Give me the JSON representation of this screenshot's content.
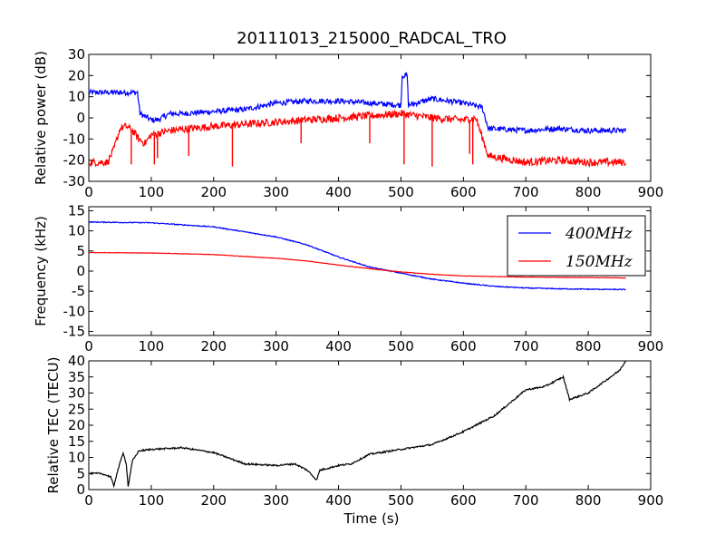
{
  "chart_data": {
    "title": "20111013_215000_RADCAL_TRO",
    "xlabel": "Time (s)",
    "colors": {
      "s400": "#0000ff",
      "s150": "#ff0000",
      "tec": "#000000"
    },
    "panels": [
      {
        "type": "line",
        "ylabel": "Relative power (dB)",
        "xlim": [
          0,
          900
        ],
        "ylim": [
          -30,
          30
        ],
        "xticks": [
          0,
          100,
          200,
          300,
          400,
          500,
          600,
          700,
          800,
          900
        ],
        "yticks": [
          -30,
          -20,
          -10,
          0,
          10,
          20,
          30
        ],
        "series": [
          {
            "color": "#0000ff",
            "noise": 1.3,
            "points": [
              [
                0,
                12
              ],
              [
                40,
                12
              ],
              [
                78,
                12
              ],
              [
                82,
                2
              ],
              [
                100,
                -1
              ],
              [
                110,
                -1
              ],
              [
                130,
                2
              ],
              [
                150,
                2
              ],
              [
                200,
                3
              ],
              [
                250,
                4
              ],
              [
                300,
                7
              ],
              [
                350,
                8
              ],
              [
                400,
                8
              ],
              [
                450,
                7
              ],
              [
                500,
                6
              ],
              [
                502,
                20
              ],
              [
                510,
                20
              ],
              [
                512,
                6
              ],
              [
                550,
                9
              ],
              [
                600,
                7
              ],
              [
                630,
                5
              ],
              [
                640,
                -5
              ],
              [
                700,
                -6
              ],
              [
                750,
                -5
              ],
              [
                800,
                -6
              ],
              [
                860,
                -6
              ]
            ]
          },
          {
            "color": "#ff0000",
            "noise": 1.8,
            "points": [
              [
                0,
                -21
              ],
              [
                30,
                -21
              ],
              [
                40,
                -15
              ],
              [
                50,
                -5
              ],
              [
                60,
                -4
              ],
              [
                70,
                -6
              ],
              [
                80,
                -10
              ],
              [
                90,
                -12
              ],
              [
                100,
                -8
              ],
              [
                130,
                -6
              ],
              [
                200,
                -4
              ],
              [
                250,
                -3
              ],
              [
                300,
                -2
              ],
              [
                350,
                -1
              ],
              [
                400,
                0
              ],
              [
                450,
                1
              ],
              [
                500,
                2
              ],
              [
                550,
                0
              ],
              [
                600,
                -1
              ],
              [
                620,
                0
              ],
              [
                640,
                -18
              ],
              [
                700,
                -21
              ],
              [
                750,
                -20
              ],
              [
                800,
                -21
              ],
              [
                860,
                -21
              ]
            ],
            "spikes": [
              [
                68,
                -22
              ],
              [
                105,
                -22
              ],
              [
                110,
                -19
              ],
              [
                160,
                -18
              ],
              [
                230,
                -23
              ],
              [
                340,
                -12
              ],
              [
                450,
                -12
              ],
              [
                505,
                -22
              ],
              [
                550,
                -23
              ],
              [
                610,
                -17
              ],
              [
                615,
                -22
              ]
            ]
          }
        ]
      },
      {
        "type": "line",
        "ylabel": "Frequency (kHz)",
        "xlim": [
          0,
          900
        ],
        "ylim": [
          -16,
          16
        ],
        "xticks": [
          0,
          100,
          200,
          300,
          400,
          500,
          600,
          700,
          800,
          900
        ],
        "yticks": [
          -15,
          -10,
          -5,
          0,
          5,
          10,
          15
        ],
        "legend": "top-right",
        "series": [
          {
            "name": "400MHz",
            "color": "#0000ff",
            "noise": 0.12,
            "points": [
              [
                0,
                12.2
              ],
              [
                100,
                12
              ],
              [
                200,
                11
              ],
              [
                300,
                8.5
              ],
              [
                350,
                6.5
              ],
              [
                400,
                3.5
              ],
              [
                450,
                1
              ],
              [
                500,
                -0.5
              ],
              [
                550,
                -2
              ],
              [
                600,
                -3
              ],
              [
                650,
                -3.8
              ],
              [
                700,
                -4.2
              ],
              [
                750,
                -4.4
              ],
              [
                800,
                -4.5
              ],
              [
                860,
                -4.6
              ]
            ]
          },
          {
            "name": "150MHz",
            "color": "#ff0000",
            "noise": 0.05,
            "points": [
              [
                0,
                4.6
              ],
              [
                100,
                4.5
              ],
              [
                200,
                4.1
              ],
              [
                300,
                3.2
              ],
              [
                350,
                2.5
              ],
              [
                400,
                1.5
              ],
              [
                450,
                0.6
              ],
              [
                500,
                -0.2
              ],
              [
                550,
                -0.8
              ],
              [
                600,
                -1.2
              ],
              [
                700,
                -1.5
              ],
              [
                800,
                -1.6
              ],
              [
                860,
                -1.7
              ]
            ]
          }
        ]
      },
      {
        "type": "line",
        "ylabel": "Relative TEC (TECU)",
        "xlim": [
          0,
          900
        ],
        "ylim": [
          0,
          40
        ],
        "xticks": [
          0,
          100,
          200,
          300,
          400,
          500,
          600,
          700,
          800,
          900
        ],
        "yticks": [
          0,
          5,
          10,
          15,
          20,
          25,
          30,
          35,
          40
        ],
        "series": [
          {
            "color": "#000000",
            "noise": 0.25,
            "points": [
              [
                0,
                5
              ],
              [
                20,
                5
              ],
              [
                35,
                4
              ],
              [
                40,
                1
              ],
              [
                45,
                5
              ],
              [
                55,
                11.5
              ],
              [
                60,
                8
              ],
              [
                63,
                1
              ],
              [
                70,
                9
              ],
              [
                80,
                12
              ],
              [
                100,
                12.5
              ],
              [
                150,
                13
              ],
              [
                200,
                11.5
              ],
              [
                250,
                8
              ],
              [
                300,
                7.5
              ],
              [
                330,
                8
              ],
              [
                350,
                6
              ],
              [
                365,
                3
              ],
              [
                370,
                6
              ],
              [
                400,
                7.5
              ],
              [
                420,
                8
              ],
              [
                450,
                11
              ],
              [
                500,
                12.5
              ],
              [
                550,
                14
              ],
              [
                600,
                18
              ],
              [
                650,
                23
              ],
              [
                700,
                31
              ],
              [
                730,
                32
              ],
              [
                760,
                35
              ],
              [
                770,
                28
              ],
              [
                800,
                30
              ],
              [
                850,
                37
              ],
              [
                860,
                40
              ]
            ]
          }
        ]
      }
    ]
  }
}
